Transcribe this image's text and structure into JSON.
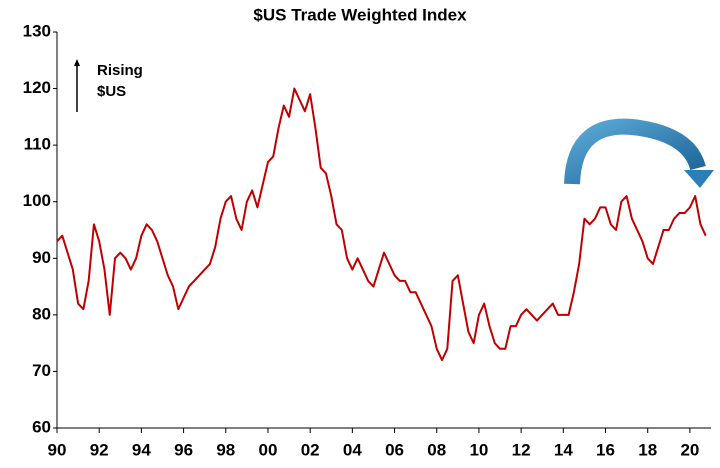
{
  "chart_data": {
    "type": "line",
    "title": "$US Trade Weighted Index",
    "annotations": [
      "Rising",
      "$US"
    ],
    "x": [
      1990,
      1990.25,
      1990.5,
      1990.75,
      1991,
      1991.25,
      1991.5,
      1991.75,
      1992,
      1992.25,
      1992.5,
      1992.75,
      1993,
      1993.25,
      1993.5,
      1993.75,
      1994,
      1994.25,
      1994.5,
      1994.75,
      1995,
      1995.25,
      1995.5,
      1995.75,
      1996,
      1996.25,
      1996.5,
      1996.75,
      1997,
      1997.25,
      1997.5,
      1997.75,
      1998,
      1998.25,
      1998.5,
      1998.75,
      1999,
      1999.25,
      1999.5,
      1999.75,
      2000,
      2000.25,
      2000.5,
      2000.75,
      2001,
      2001.25,
      2001.5,
      2001.75,
      2002,
      2002.25,
      2002.5,
      2002.75,
      2003,
      2003.25,
      2003.5,
      2003.75,
      2004,
      2004.25,
      2004.5,
      2004.75,
      2005,
      2005.25,
      2005.5,
      2005.75,
      2006,
      2006.25,
      2006.5,
      2006.75,
      2007,
      2007.25,
      2007.5,
      2007.75,
      2008,
      2008.25,
      2008.5,
      2008.75,
      2009,
      2009.25,
      2009.5,
      2009.75,
      2010,
      2010.25,
      2010.5,
      2010.75,
      2011,
      2011.25,
      2011.5,
      2011.75,
      2012,
      2012.25,
      2012.5,
      2012.75,
      2013,
      2013.25,
      2013.5,
      2013.75,
      2014,
      2014.25,
      2014.5,
      2014.75,
      2015,
      2015.25,
      2015.5,
      2015.75,
      2016,
      2016.25,
      2016.5,
      2016.75,
      2017,
      2017.25,
      2017.5,
      2017.75,
      2018,
      2018.25,
      2018.5,
      2018.75,
      2019,
      2019.25,
      2019.5,
      2019.75,
      2020,
      2020.25,
      2020.5,
      2020.75
    ],
    "series": [
      {
        "color": "#c00000",
        "values": [
          93,
          94,
          91,
          88,
          82,
          81,
          86,
          96,
          93,
          88,
          80,
          90,
          91,
          90,
          88,
          90,
          94,
          96,
          95,
          93,
          90,
          87,
          85,
          81,
          83,
          85,
          86,
          87,
          88,
          89,
          92,
          97,
          100,
          101,
          97,
          95,
          100,
          102,
          99,
          103,
          107,
          108,
          113,
          117,
          115,
          120,
          118,
          116,
          119,
          113,
          106,
          105,
          101,
          96,
          95,
          90,
          88,
          90,
          88,
          86,
          85,
          88,
          91,
          89,
          87,
          86,
          86,
          84,
          84,
          82,
          80,
          78,
          74,
          72,
          74,
          86,
          87,
          82,
          77,
          75,
          80,
          82,
          78,
          75,
          74,
          74,
          78,
          78,
          80,
          81,
          80,
          79,
          80,
          81,
          82,
          80,
          80,
          80,
          84,
          89,
          97,
          96,
          97,
          99,
          99,
          96,
          95,
          100,
          101,
          97,
          95,
          93,
          90,
          89,
          92,
          95,
          95,
          97,
          98,
          98,
          99,
          101,
          96,
          94
        ]
      }
    ],
    "xlim": [
      1990,
      2021
    ],
    "xticks": [
      {
        "value": 1990,
        "label": "90"
      },
      {
        "value": 1992,
        "label": "92"
      },
      {
        "value": 1994,
        "label": "94"
      },
      {
        "value": 1996,
        "label": "96"
      },
      {
        "value": 1998,
        "label": "98"
      },
      {
        "value": 2000,
        "label": "00"
      },
      {
        "value": 2002,
        "label": "02"
      },
      {
        "value": 2004,
        "label": "04"
      },
      {
        "value": 2006,
        "label": "06"
      },
      {
        "value": 2008,
        "label": "08"
      },
      {
        "value": 2010,
        "label": "10"
      },
      {
        "value": 2012,
        "label": "12"
      },
      {
        "value": 2014,
        "label": "14"
      },
      {
        "value": 2016,
        "label": "16"
      },
      {
        "value": 2018,
        "label": "18"
      },
      {
        "value": 2020,
        "label": "20"
      }
    ],
    "ylim": [
      60,
      130
    ],
    "yticks": [
      60,
      70,
      80,
      90,
      100,
      110,
      120,
      130
    ],
    "grid": false
  }
}
